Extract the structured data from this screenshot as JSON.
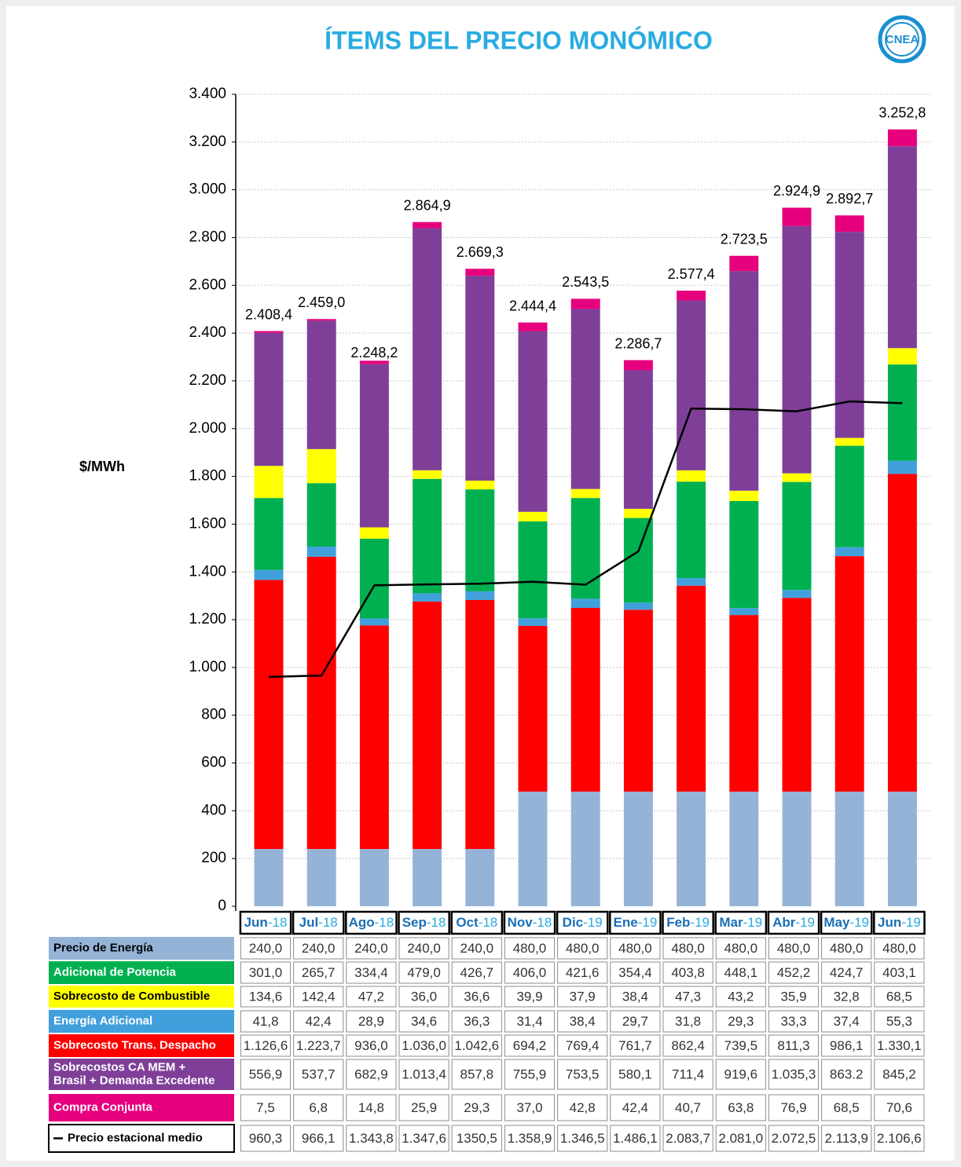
{
  "logo": "CNEA",
  "chart_data": {
    "type": "stacked-bar-line",
    "title": "ÍTEMS DEL PRECIO MONÓMICO",
    "y_label": "$/MWh",
    "categories": [
      "Jun-18",
      "Jul-18",
      "Ago-18",
      "Sep-18",
      "Oct-18",
      "Nov-18",
      "Dic-19",
      "Ene-19",
      "Feb-19",
      "Mar-19",
      "Abr-19",
      "May-19",
      "Jun-19"
    ],
    "ylim": [
      0,
      3400
    ],
    "yticks": [
      0,
      200,
      400,
      600,
      800,
      {
        "value": 1000,
        "label": "1.000"
      },
      {
        "value": 1200,
        "label": "1.200"
      },
      {
        "value": 1400,
        "label": "1.400"
      },
      {
        "value": 1600,
        "label": "1.600"
      },
      {
        "value": 1800,
        "label": "1.800"
      },
      {
        "value": 2000,
        "label": "2.000"
      },
      {
        "value": 2200,
        "label": "2.200"
      },
      {
        "value": 2400,
        "label": "2.400"
      },
      {
        "value": 2600,
        "label": "2.600"
      },
      {
        "value": 2800,
        "label": "2.800"
      },
      {
        "value": 3000,
        "label": "3.000"
      },
      {
        "value": 3200,
        "label": "3.200"
      },
      {
        "value": 3400,
        "label": "3.400"
      }
    ],
    "grid": true,
    "series": [
      {
        "name": "Precio de Energía",
        "color": "#95b3d7",
        "type": "bar",
        "values": [
          240,
          240,
          240,
          240,
          240,
          480,
          480,
          480,
          480,
          480,
          480,
          480,
          480
        ],
        "value_labels": [
          "240,0",
          "240,0",
          "240,0",
          "240,0",
          "240,0",
          "480,0",
          "480,0",
          "480,0",
          "480,0",
          "480,0",
          "480,0",
          "480,0",
          "480,0"
        ]
      },
      {
        "name": "Adicional de Potencia",
        "color": "#00b050",
        "type": "bar",
        "values": [
          301.0,
          265.7,
          334.4,
          479.0,
          426.7,
          406.0,
          421.6,
          354.4,
          403.8,
          448.1,
          452.2,
          424.7,
          403.1
        ],
        "value_labels": [
          "301,0",
          "265,7",
          "334,4",
          "479,0",
          "426,7",
          "406,0",
          "421,6",
          "354,4",
          "403,8",
          "448,1",
          "452,2",
          "424,7",
          "403,1"
        ]
      },
      {
        "name": "Sobrecosto de Combustible",
        "color": "#ffff00",
        "type": "bar",
        "values": [
          134.6,
          142.4,
          47.2,
          36.0,
          36.6,
          39.9,
          37.9,
          38.4,
          47.3,
          43.2,
          35.9,
          32.8,
          68.5
        ],
        "value_labels": [
          "134,6",
          "142,4",
          "47,2",
          "36,0",
          "36,6",
          "39,9",
          "37,9",
          "38,4",
          "47,3",
          "43,2",
          "35,9",
          "32,8",
          "68,5"
        ]
      },
      {
        "name": "Energía Adicional",
        "color": "#41a0dc",
        "type": "bar",
        "values": [
          41.8,
          42.4,
          28.9,
          34.6,
          36.3,
          31.4,
          38.4,
          29.7,
          31.8,
          29.3,
          33.3,
          37.4,
          55.3
        ],
        "value_labels": [
          "41,8",
          "42,4",
          "28,9",
          "34,6",
          "36,3",
          "31,4",
          "38,4",
          "29,7",
          "31,8",
          "29,3",
          "33,3",
          "37,4",
          "55,3"
        ]
      },
      {
        "name": "Sobrecosto Trans. Despacho",
        "color": "#ff0000",
        "type": "bar",
        "values": [
          1126.6,
          1223.7,
          936.0,
          1036.0,
          1042.6,
          694.2,
          769.4,
          761.7,
          862.4,
          739.5,
          811.3,
          986.1,
          1330.1
        ],
        "value_labels": [
          "1.126,6",
          "1.223,7",
          "936,0",
          "1.036,0",
          "1.042,6",
          "694,2",
          "769,4",
          "761,7",
          "862,4",
          "739,5",
          "811,3",
          "986,1",
          "1.330,1"
        ]
      },
      {
        "name": "Sobrecostos CA MEM +\nBrasil + Demanda Excedente",
        "color": "#7f3f98",
        "type": "bar",
        "values": [
          556.9,
          537.7,
          682.9,
          1013.4,
          857.8,
          755.9,
          753.5,
          580.1,
          711.4,
          919.6,
          1035.3,
          863.2,
          845.2
        ],
        "value_labels": [
          "556,9",
          "537,7",
          "682,9",
          "1.013,4",
          "857,8",
          "755,9",
          "753,5",
          "580,1",
          "711,4",
          "919,6",
          "1.035,3",
          "863.2",
          "845,2"
        ]
      },
      {
        "name": "Compra Conjunta",
        "color": "#e6007e",
        "type": "bar",
        "values": [
          7.5,
          6.8,
          14.8,
          25.9,
          29.3,
          37.0,
          42.8,
          42.4,
          40.7,
          63.8,
          76.9,
          68.5,
          70.6
        ],
        "value_labels": [
          "7,5",
          "6,8",
          "14,8",
          "25,9",
          "29,3",
          "37,0",
          "42,8",
          "42,4",
          "40,7",
          "63,8",
          "76,9",
          "68,5",
          "70,6"
        ]
      },
      {
        "name": "Precio estacional medio",
        "color": "#000000",
        "type": "line",
        "values": [
          960.3,
          966.1,
          1343.8,
          1347.6,
          1350.5,
          1358.9,
          1346.5,
          1486.1,
          2083.7,
          2081.0,
          2072.5,
          2113.9,
          2106.6
        ],
        "value_labels": [
          "960,3",
          "966,1",
          "1.343,8",
          "1.347,6",
          "1350,5",
          "1.358,9",
          "1.346,5",
          "1.486,1",
          "2.083,7",
          "2.081,0",
          "2.072,5",
          "2.113,9",
          "2.106,6"
        ]
      }
    ],
    "totals": {
      "values": [
        2408.4,
        2459.0,
        2248.2,
        2864.9,
        2669.3,
        2444.4,
        2543.5,
        2286.7,
        2577.4,
        2723.5,
        2924.9,
        2892.7,
        3252.8
      ],
      "value_labels": [
        "2.408,4",
        "2.459,0",
        "2.248,2",
        "2.864,9",
        "2.669,3",
        "2.444,4",
        "2.543,5",
        "2.286,7",
        "2.577,4",
        "2.723,5",
        "2.924,9",
        "2.892,7",
        "3.252,8"
      ]
    }
  }
}
